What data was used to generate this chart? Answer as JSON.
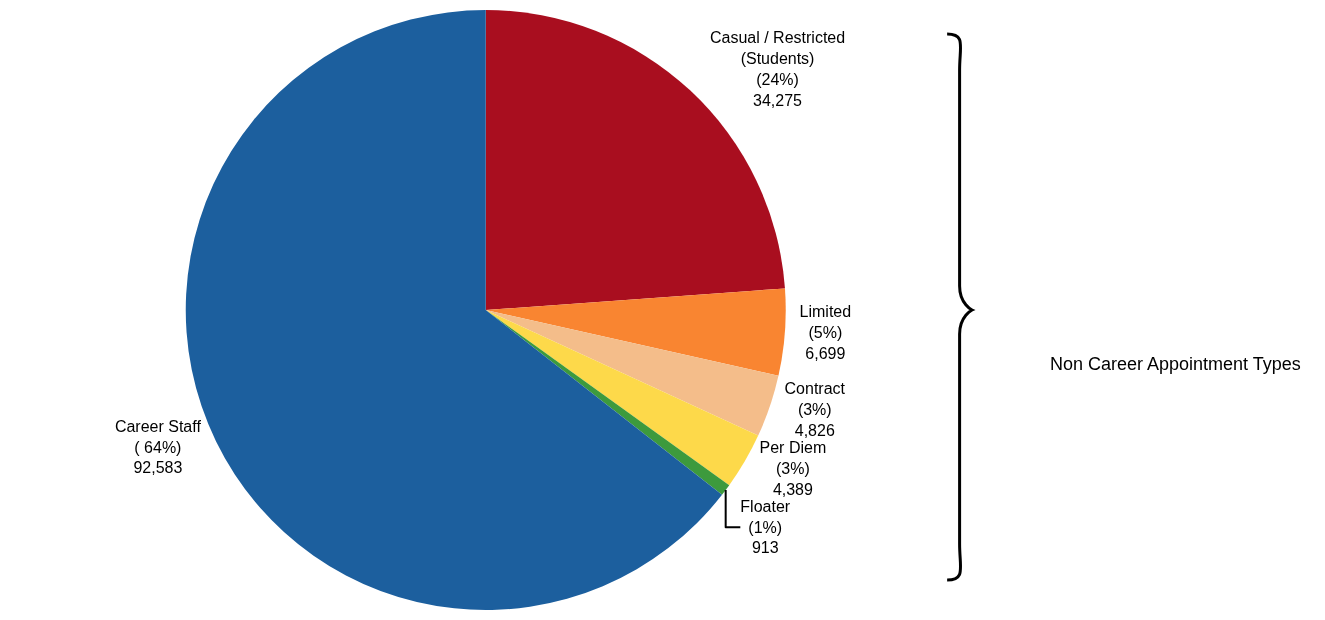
{
  "chart_data": {
    "type": "pie",
    "categories": [
      "Casual / Restricted\n(Students)",
      "Limited",
      "Contract",
      "Per Diem",
      "Floater",
      "Career Staff"
    ],
    "values": [
      34275,
      6699,
      4826,
      4389,
      913,
      92583
    ],
    "value_labels": [
      "(24%)\n34,275",
      "(5%)\n6,699",
      "(3%)\n4,826",
      "(3%)\n4,389",
      "(1%)\n913",
      "( 64%)\n92,583"
    ],
    "colors": [
      "#a90e1f",
      "#f98531",
      "#f4bd8a",
      "#fdd94a",
      "#3d9a3d",
      "#1c5f9e"
    ],
    "annotations": [
      "Non Career Appointment Types"
    ],
    "legend": false
  }
}
